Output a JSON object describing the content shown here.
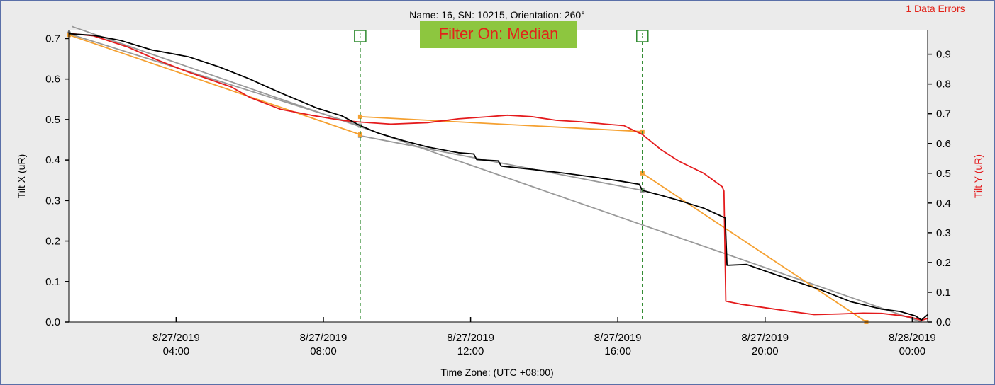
{
  "chart_data": {
    "type": "line",
    "title": "Name: 16, SN: 10215, Orientation: 260°",
    "error_badge": "1 Data Errors",
    "filter_label": "Filter On: Median",
    "xlabel": "Time Zone: (UTC +08:00)",
    "ylabel_left": "Tilt X (uR)",
    "ylabel_right": "Tilt Y (uR)",
    "xlim": [
      "2019-08-27T01:05",
      "2019-08-28T00:25"
    ],
    "ylim_left": [
      0,
      0.72
    ],
    "ylim_right": [
      0,
      0.98
    ],
    "x_ticks": [
      {
        "date": "8/27/2019",
        "time": "04:00",
        "t": "2019-08-27T04:00"
      },
      {
        "date": "8/27/2019",
        "time": "08:00",
        "t": "2019-08-27T08:00"
      },
      {
        "date": "8/27/2019",
        "time": "12:00",
        "t": "2019-08-27T12:00"
      },
      {
        "date": "8/27/2019",
        "time": "16:00",
        "t": "2019-08-27T16:00"
      },
      {
        "date": "8/27/2019",
        "time": "20:00",
        "t": "2019-08-27T20:00"
      },
      {
        "date": "8/28/2019",
        "time": "00:00",
        "t": "2019-08-28T00:00"
      }
    ],
    "y_ticks_left": [
      "0.0",
      "0.1",
      "0.2",
      "0.3",
      "0.4",
      "0.5",
      "0.6",
      "0.7"
    ],
    "y_ticks_right": [
      "0.0",
      "0.1",
      "0.2",
      "0.3",
      "0.4",
      "0.5",
      "0.6",
      "0.7",
      "0.8",
      "0.9"
    ],
    "grid": false,
    "colors": {
      "tilt_x": "#000000",
      "tilt_y": "#e41a1c",
      "fit_x": "#999999",
      "fit_y": "#f5a030",
      "marker": "#2f8a2f",
      "filter_bg": "#8dc63f",
      "filter_text": "#e2231a",
      "error_text": "#e2231a"
    },
    "markers": [
      {
        "t": "2019-08-27T09:00"
      },
      {
        "t": "2019-08-27T16:40"
      }
    ],
    "series": [
      {
        "name": "Tilt X (uR)",
        "axis": "left",
        "color": "#000000",
        "points": [
          [
            "2019-08-27T01:05",
            0.712
          ],
          [
            "2019-08-27T01:45",
            0.708
          ],
          [
            "2019-08-27T02:30",
            0.695
          ],
          [
            "2019-08-27T03:20",
            0.672
          ],
          [
            "2019-08-27T04:20",
            0.655
          ],
          [
            "2019-08-27T05:10",
            0.63
          ],
          [
            "2019-08-27T06:00",
            0.6
          ],
          [
            "2019-08-27T06:50",
            0.566
          ],
          [
            "2019-08-27T07:50",
            0.528
          ],
          [
            "2019-08-27T08:30",
            0.509
          ],
          [
            "2019-08-27T09:00",
            0.485
          ],
          [
            "2019-08-27T09:30",
            0.466
          ],
          [
            "2019-08-27T10:10",
            0.448
          ],
          [
            "2019-08-27T10:50",
            0.432
          ],
          [
            "2019-08-27T11:40",
            0.418
          ],
          [
            "2019-08-27T12:05",
            0.415
          ],
          [
            "2019-08-27T12:10",
            0.401
          ],
          [
            "2019-08-27T12:45",
            0.398
          ],
          [
            "2019-08-27T12:50",
            0.385
          ],
          [
            "2019-08-27T13:40",
            0.377
          ],
          [
            "2019-08-27T14:30",
            0.368
          ],
          [
            "2019-08-27T15:20",
            0.358
          ],
          [
            "2019-08-27T16:00",
            0.349
          ],
          [
            "2019-08-27T16:35",
            0.34
          ],
          [
            "2019-08-27T16:40",
            0.325
          ],
          [
            "2019-08-27T17:10",
            0.313
          ],
          [
            "2019-08-27T17:40",
            0.3
          ],
          [
            "2019-08-27T18:20",
            0.281
          ],
          [
            "2019-08-27T18:55",
            0.257
          ],
          [
            "2019-08-27T18:58",
            0.14
          ],
          [
            "2019-08-27T19:30",
            0.142
          ],
          [
            "2019-08-27T20:00",
            0.126
          ],
          [
            "2019-08-27T20:40",
            0.105
          ],
          [
            "2019-08-27T21:30",
            0.08
          ],
          [
            "2019-08-27T22:20",
            0.05
          ],
          [
            "2019-08-27T23:10",
            0.032
          ],
          [
            "2019-08-27T23:40",
            0.026
          ],
          [
            "2019-08-28T00:05",
            0.015
          ],
          [
            "2019-08-28T00:15",
            0.005
          ],
          [
            "2019-08-28T00:25",
            0.018
          ]
        ]
      },
      {
        "name": "Tilt Y (uR)",
        "axis": "right",
        "color": "#e41a1c",
        "points": [
          [
            "2019-08-27T01:05",
            0.97
          ],
          [
            "2019-08-27T01:45",
            0.962
          ],
          [
            "2019-08-27T02:40",
            0.925
          ],
          [
            "2019-08-27T03:30",
            0.88
          ],
          [
            "2019-08-27T04:20",
            0.84
          ],
          [
            "2019-08-27T05:30",
            0.79
          ],
          [
            "2019-08-27T06:00",
            0.755
          ],
          [
            "2019-08-27T06:50",
            0.715
          ],
          [
            "2019-08-27T07:40",
            0.695
          ],
          [
            "2019-08-27T08:30",
            0.678
          ],
          [
            "2019-08-27T09:00",
            0.672
          ],
          [
            "2019-08-27T09:50",
            0.665
          ],
          [
            "2019-08-27T10:50",
            0.67
          ],
          [
            "2019-08-27T11:40",
            0.683
          ],
          [
            "2019-08-27T12:30",
            0.69
          ],
          [
            "2019-08-27T13:00",
            0.695
          ],
          [
            "2019-08-27T13:40",
            0.69
          ],
          [
            "2019-08-27T14:20",
            0.678
          ],
          [
            "2019-08-27T15:00",
            0.673
          ],
          [
            "2019-08-27T15:40",
            0.665
          ],
          [
            "2019-08-27T16:10",
            0.66
          ],
          [
            "2019-08-27T16:40",
            0.63
          ],
          [
            "2019-08-27T17:10",
            0.58
          ],
          [
            "2019-08-27T17:40",
            0.54
          ],
          [
            "2019-08-27T18:20",
            0.5
          ],
          [
            "2019-08-27T18:50",
            0.455
          ],
          [
            "2019-08-27T18:53",
            0.44
          ],
          [
            "2019-08-27T18:56",
            0.07
          ],
          [
            "2019-08-27T19:20",
            0.06
          ],
          [
            "2019-08-27T20:00",
            0.048
          ],
          [
            "2019-08-27T20:40",
            0.036
          ],
          [
            "2019-08-27T21:20",
            0.025
          ],
          [
            "2019-08-27T22:00",
            0.027
          ],
          [
            "2019-08-27T22:40",
            0.03
          ],
          [
            "2019-08-27T23:10",
            0.029
          ],
          [
            "2019-08-27T23:40",
            0.022
          ],
          [
            "2019-08-28T00:00",
            0.015
          ],
          [
            "2019-08-28T00:15",
            0.006
          ],
          [
            "2019-08-28T00:25",
            0.012
          ]
        ]
      }
    ],
    "fit_lines": [
      {
        "name": "tilt-x-trend-full",
        "axis": "left",
        "color": "#999999",
        "points": [
          [
            "2019-08-27T01:10",
            0.73
          ],
          [
            "2019-08-28T00:15",
            0.0
          ]
        ]
      },
      {
        "name": "tilt-x-segment-1",
        "axis": "left",
        "color": "#999999",
        "points": [
          [
            "2019-08-27T01:05",
            0.712
          ],
          [
            "2019-08-27T09:00",
            0.485
          ]
        ],
        "endpoint_markers": true
      },
      {
        "name": "tilt-x-segment-2",
        "axis": "left",
        "color": "#999999",
        "points": [
          [
            "2019-08-27T09:00",
            0.46
          ],
          [
            "2019-08-27T16:40",
            0.325
          ]
        ],
        "endpoint_markers": true
      },
      {
        "name": "tilt-y-segment-1",
        "axis": "right",
        "color": "#f5a030",
        "points": [
          [
            "2019-08-27T01:05",
            0.965
          ],
          [
            "2019-08-27T09:00",
            0.63
          ]
        ],
        "endpoint_markers": true
      },
      {
        "name": "tilt-y-segment-2",
        "axis": "right",
        "color": "#f5a030",
        "points": [
          [
            "2019-08-27T09:00",
            0.69
          ],
          [
            "2019-08-27T16:40",
            0.64
          ]
        ],
        "endpoint_markers": true
      },
      {
        "name": "tilt-y-segment-3",
        "axis": "right",
        "color": "#f5a030",
        "points": [
          [
            "2019-08-27T16:40",
            0.5
          ],
          [
            "2019-08-27T22:45",
            0.0
          ]
        ],
        "endpoint_markers": true
      }
    ]
  }
}
